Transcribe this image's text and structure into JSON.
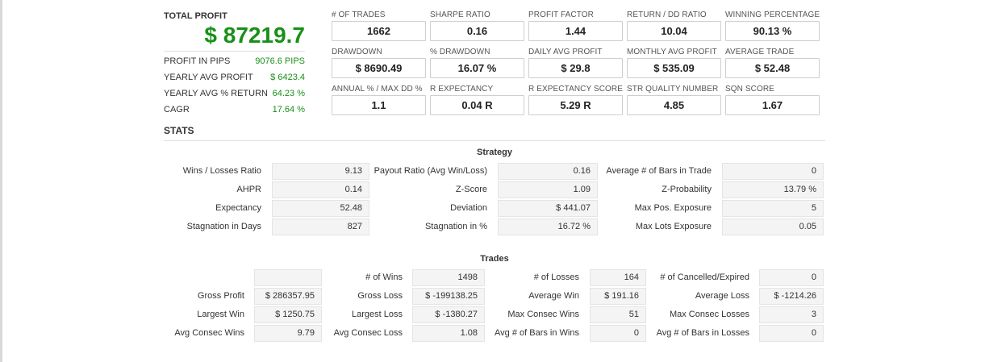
{
  "total_profit": {
    "title": "TOTAL PROFIT",
    "value": "$ 87219.7"
  },
  "summary": [
    {
      "label": "PROFIT IN PIPS",
      "value": "9076.6 PIPS"
    },
    {
      "label": "YEARLY AVG PROFIT",
      "value": "$ 6423.4"
    },
    {
      "label": "YEARLY AVG % RETURN",
      "value": "64.23 %"
    },
    {
      "label": "CAGR",
      "value": "17.64 %"
    }
  ],
  "kpis": [
    {
      "label": "# OF TRADES",
      "value": "1662"
    },
    {
      "label": "SHARPE RATIO",
      "value": "0.16"
    },
    {
      "label": "PROFIT FACTOR",
      "value": "1.44"
    },
    {
      "label": "RETURN / DD RATIO",
      "value": "10.04"
    },
    {
      "label": "WINNING PERCENTAGE",
      "value": "90.13 %"
    },
    {
      "label": "DRAWDOWN",
      "value": "$ 8690.49"
    },
    {
      "label": "% DRAWDOWN",
      "value": "16.07 %"
    },
    {
      "label": "DAILY AVG PROFIT",
      "value": "$ 29.8"
    },
    {
      "label": "MONTHLY AVG PROFIT",
      "value": "$ 535.09"
    },
    {
      "label": "AVERAGE TRADE",
      "value": "$ 52.48"
    },
    {
      "label": "ANNUAL % / MAX DD %",
      "value": "1.1"
    },
    {
      "label": "R EXPECTANCY",
      "value": "0.04 R"
    },
    {
      "label": "R EXPECTANCY SCORE",
      "value": "5.29 R"
    },
    {
      "label": "STR QUALITY NUMBER",
      "value": "4.85"
    },
    {
      "label": "SQN SCORE",
      "value": "1.67"
    }
  ],
  "stats": {
    "title": "STATS",
    "strategy": {
      "title": "Strategy",
      "rows": [
        [
          {
            "label": "Wins / Losses Ratio",
            "value": "9.13"
          },
          {
            "label": "Payout Ratio (Avg Win/Loss)",
            "value": "0.16"
          },
          {
            "label": "Average # of Bars in Trade",
            "value": "0"
          }
        ],
        [
          {
            "label": "AHPR",
            "value": "0.14"
          },
          {
            "label": "Z-Score",
            "value": "1.09"
          },
          {
            "label": "Z-Probability",
            "value": "13.79 %"
          }
        ],
        [
          {
            "label": "Expectancy",
            "value": "52.48"
          },
          {
            "label": "Deviation",
            "value": "$ 441.07"
          },
          {
            "label": "Max Pos. Exposure",
            "value": "5"
          }
        ],
        [
          {
            "label": "Stagnation in Days",
            "value": "827"
          },
          {
            "label": "Stagnation in %",
            "value": "16.72 %"
          },
          {
            "label": "Max Lots Exposure",
            "value": "0.05"
          }
        ]
      ]
    },
    "trades": {
      "title": "Trades",
      "rows": [
        [
          {
            "label": "",
            "value": ""
          },
          {
            "label": "# of Wins",
            "value": "1498"
          },
          {
            "label": "# of Losses",
            "value": "164"
          },
          {
            "label": "# of Cancelled/Expired",
            "value": "0"
          }
        ],
        [
          {
            "label": "Gross Profit",
            "value": "$ 286357.95"
          },
          {
            "label": "Gross Loss",
            "value": "$ -199138.25"
          },
          {
            "label": "Average Win",
            "value": "$ 191.16"
          },
          {
            "label": "Average Loss",
            "value": "$ -1214.26"
          }
        ],
        [
          {
            "label": "Largest Win",
            "value": "$ 1250.75"
          },
          {
            "label": "Largest Loss",
            "value": "$ -1380.27"
          },
          {
            "label": "Max Consec Wins",
            "value": "51"
          },
          {
            "label": "Max Consec Losses",
            "value": "3"
          }
        ],
        [
          {
            "label": "Avg Consec Wins",
            "value": "9.79"
          },
          {
            "label": "Avg Consec Loss",
            "value": "1.08"
          },
          {
            "label": "Avg # of Bars in Wins",
            "value": "0"
          },
          {
            "label": "Avg # of Bars in Losses",
            "value": "0"
          }
        ]
      ]
    }
  },
  "colors": {
    "profit_green": "#189018"
  }
}
